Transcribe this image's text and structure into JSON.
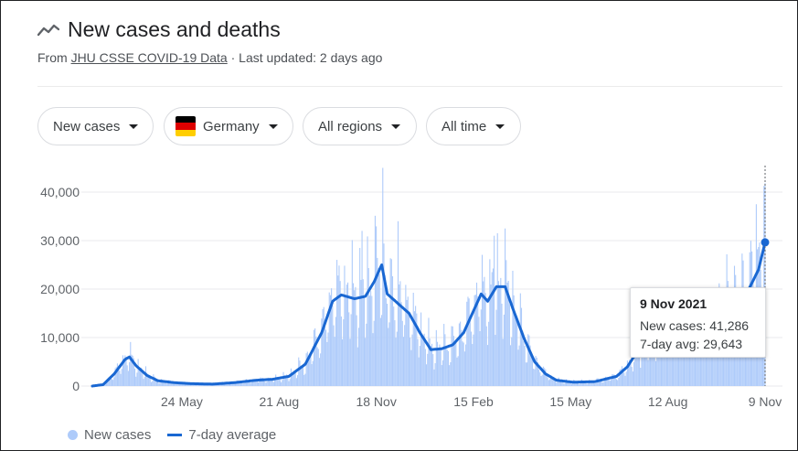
{
  "header": {
    "title": "New cases and deaths",
    "icon": "trending-line-icon",
    "source_prefix": "From",
    "source_link": "JHU CSSE COVID-19 Data",
    "source_suffix": "· Last updated: 2 days ago"
  },
  "filters": {
    "metric": "New cases",
    "country": "Germany",
    "region": "All regions",
    "range": "All time"
  },
  "flag_colors": [
    "#000000",
    "#dd0000",
    "#ffce00"
  ],
  "tooltip": {
    "date": "9 Nov 2021",
    "new_cases_line": "New cases: 41,286",
    "avg_line": "7-day avg: 29,643"
  },
  "legend": {
    "bars": "New cases",
    "line": "7-day average"
  },
  "colors": {
    "bars": "#aecbfa",
    "line": "#1967d2",
    "grid": "#e8eaed"
  },
  "chart_data": {
    "type": "bar",
    "ylim": [
      0,
      40000
    ],
    "y_ticks": [
      0,
      10000,
      20000,
      30000,
      40000
    ],
    "y_tick_labels": [
      "0",
      "10,000",
      "20,000",
      "30,000",
      "40,000"
    ],
    "x_ticks": [
      {
        "day": 82,
        "label": "24 May"
      },
      {
        "day": 171,
        "label": "21 Aug"
      },
      {
        "day": 260,
        "label": "18 Nov"
      },
      {
        "day": 349,
        "label": "15 Feb"
      },
      {
        "day": 438,
        "label": "15 May"
      },
      {
        "day": 527,
        "label": "12 Aug"
      },
      {
        "day": 616,
        "label": "9 Nov"
      }
    ],
    "series": [
      {
        "name": "7-day average",
        "style": "line",
        "points": [
          [
            0,
            0
          ],
          [
            10,
            300
          ],
          [
            20,
            2500
          ],
          [
            30,
            5500
          ],
          [
            34,
            6000
          ],
          [
            40,
            4200
          ],
          [
            50,
            2200
          ],
          [
            60,
            1100
          ],
          [
            75,
            700
          ],
          [
            90,
            500
          ],
          [
            110,
            400
          ],
          [
            130,
            700
          ],
          [
            150,
            1200
          ],
          [
            165,
            1400
          ],
          [
            180,
            2000
          ],
          [
            195,
            4500
          ],
          [
            210,
            11000
          ],
          [
            220,
            17500
          ],
          [
            228,
            18800
          ],
          [
            240,
            18000
          ],
          [
            250,
            18500
          ],
          [
            258,
            21500
          ],
          [
            265,
            25000
          ],
          [
            270,
            19000
          ],
          [
            280,
            17000
          ],
          [
            290,
            15000
          ],
          [
            300,
            11000
          ],
          [
            310,
            7500
          ],
          [
            320,
            7700
          ],
          [
            330,
            8500
          ],
          [
            340,
            11000
          ],
          [
            350,
            16000
          ],
          [
            356,
            19000
          ],
          [
            362,
            17500
          ],
          [
            370,
            20500
          ],
          [
            378,
            20500
          ],
          [
            385,
            16000
          ],
          [
            395,
            10000
          ],
          [
            405,
            5000
          ],
          [
            415,
            2500
          ],
          [
            425,
            1200
          ],
          [
            440,
            800
          ],
          [
            460,
            900
          ],
          [
            480,
            2000
          ],
          [
            490,
            4000
          ],
          [
            500,
            7500
          ],
          [
            510,
            10500
          ],
          [
            520,
            11500
          ],
          [
            530,
            11000
          ],
          [
            540,
            12000
          ],
          [
            550,
            11500
          ],
          [
            560,
            12000
          ],
          [
            570,
            13000
          ],
          [
            580,
            15500
          ],
          [
            590,
            17500
          ],
          [
            600,
            19500
          ],
          [
            610,
            24000
          ],
          [
            616,
            29643
          ]
        ]
      },
      {
        "name": "New cases",
        "style": "bar",
        "values_every_day": "derived from 7-day average with weekly pattern",
        "peaks": [
          {
            "day": 266,
            "value": 45000
          },
          {
            "day": 280,
            "value": 34000
          },
          {
            "day": 247,
            "value": 32000
          },
          {
            "day": 368,
            "value": 31000
          },
          {
            "day": 378,
            "value": 32500
          },
          {
            "day": 608,
            "value": 37500
          },
          {
            "day": 615,
            "value": 41286
          }
        ]
      }
    ]
  }
}
